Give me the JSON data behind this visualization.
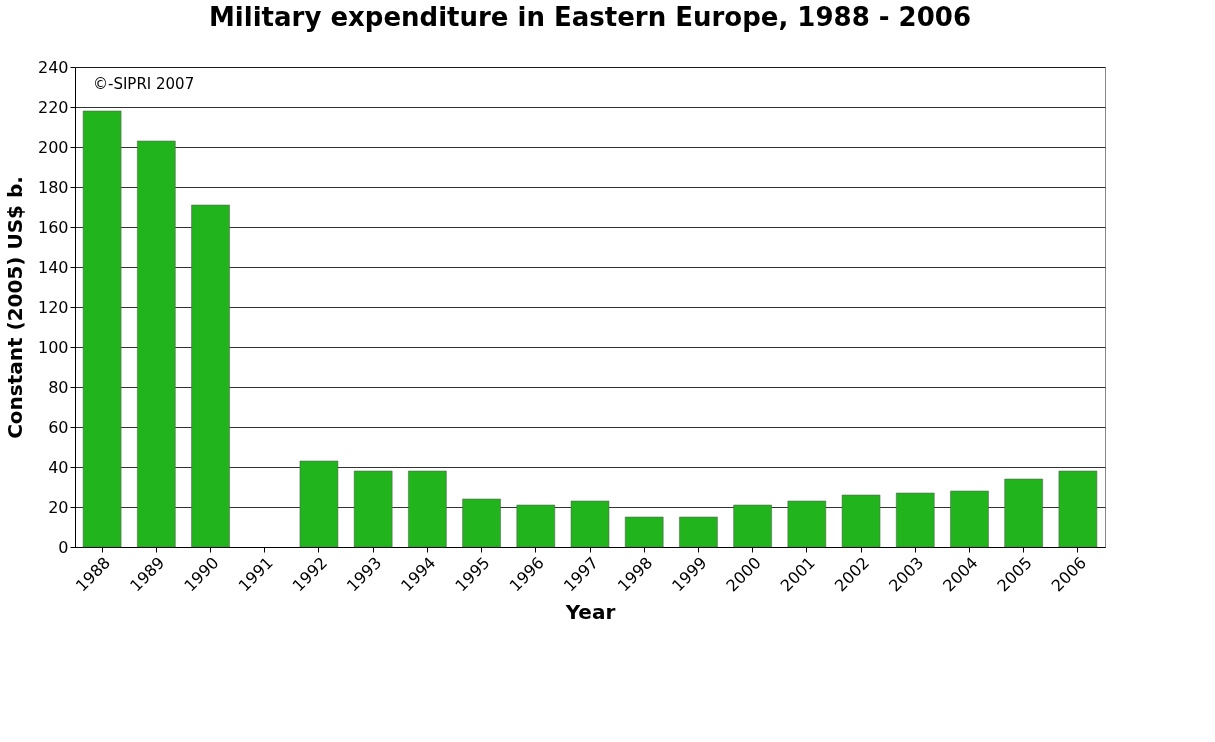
{
  "chart_data": {
    "type": "bar",
    "title": "Military expenditure in Eastern Europe, 1988 - 2006",
    "xlabel": "Year",
    "ylabel": "Constant (2005) US$ b.",
    "categories": [
      "1988",
      "1989",
      "1990",
      "1991",
      "1992",
      "1993",
      "1994",
      "1995",
      "1996",
      "1997",
      "1998",
      "1999",
      "2000",
      "2001",
      "2002",
      "2003",
      "2004",
      "2005",
      "2006"
    ],
    "values": [
      218,
      203,
      171,
      null,
      43,
      38,
      38,
      24,
      21,
      23,
      15,
      15,
      21,
      23,
      26,
      27,
      28,
      34,
      38
    ],
    "color": "#22b41c",
    "ylim": [
      0,
      240
    ],
    "yticks": [
      0,
      20,
      40,
      60,
      80,
      100,
      120,
      140,
      160,
      180,
      200,
      220,
      240
    ],
    "grid": "y",
    "annotations": [
      "©-SIPRI 2007"
    ]
  }
}
